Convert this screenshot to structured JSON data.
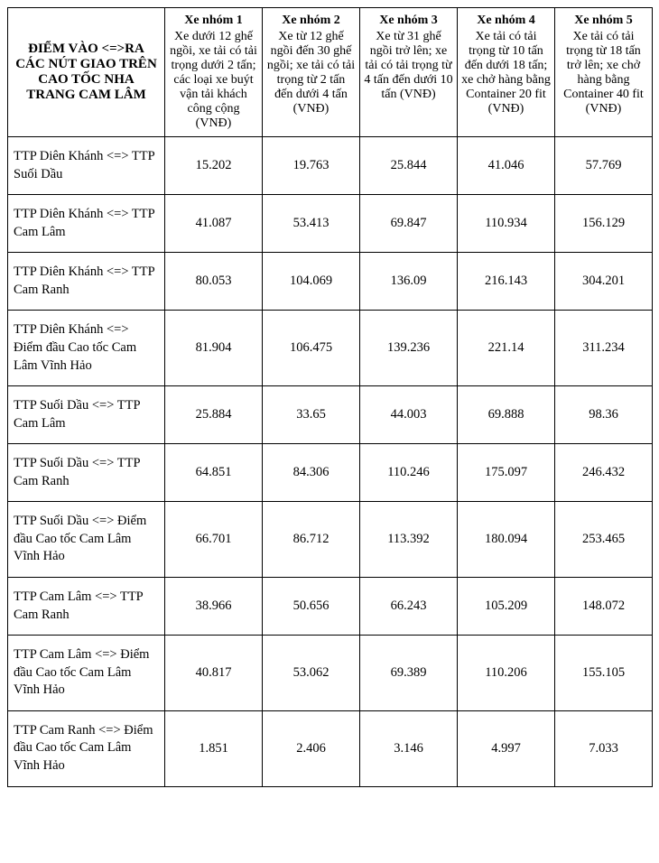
{
  "table": {
    "type": "table",
    "background_color": "#ffffff",
    "border_color": "#000000",
    "font_family": "Times New Roman",
    "header_fontsize": 15,
    "group_title_fontsize": 14,
    "cell_fontsize": 14.5,
    "header": {
      "route_title": "ĐIỂM VÀO <=>RA CÁC NÚT GIAO TRÊN CAO TỐC NHA TRANG CAM LÂM",
      "groups": [
        {
          "title": "Xe nhóm 1",
          "desc": "Xe dưới 12 ghế ngồi, xe tải có tải trọng dưới 2 tấn; các loại xe buýt vận tải khách công cộng (VNĐ)"
        },
        {
          "title": "Xe nhóm 2",
          "desc": "Xe từ 12 ghế ngồi đến 30 ghế ngồi; xe tải có tải trọng từ 2 tấn đến dưới 4 tấn (VNĐ)"
        },
        {
          "title": "Xe nhóm 3",
          "desc": "Xe từ 31 ghế ngồi trở lên; xe tải có tải trọng từ 4 tấn đến dưới 10 tấn (VNĐ)"
        },
        {
          "title": "Xe nhóm 4",
          "desc": "Xe  tải có tải trọng từ 10 tấn đến dưới 18 tấn; xe chở hàng bằng Container 20 fit (VNĐ)"
        },
        {
          "title": "Xe nhóm 5",
          "desc": "Xe tải có tải trọng từ 18 tấn trở lên; xe chở hàng bằng Container 40 fit (VNĐ)"
        }
      ]
    },
    "rows": [
      {
        "route": "TTP Diên Khánh <=> TTP Suối Dầu",
        "values": [
          "15.202",
          "19.763",
          "25.844",
          "41.046",
          "57.769"
        ]
      },
      {
        "route": "TTP Diên Khánh <=> TTP Cam Lâm",
        "values": [
          "41.087",
          "53.413",
          "69.847",
          "110.934",
          "156.129"
        ]
      },
      {
        "route": "TTP Diên Khánh <=> TTP Cam Ranh",
        "values": [
          "80.053",
          "104.069",
          "136.09",
          "216.143",
          "304.201"
        ]
      },
      {
        "route": "TTP Diên Khánh <=> Điểm đầu Cao tốc Cam Lâm Vĩnh Hảo",
        "values": [
          "81.904",
          "106.475",
          "139.236",
          "221.14",
          "311.234"
        ]
      },
      {
        "route": "TTP Suối Dầu <=> TTP Cam Lâm",
        "values": [
          "25.884",
          "33.65",
          "44.003",
          "69.888",
          "98.36"
        ]
      },
      {
        "route": "TTP Suối Dầu <=> TTP Cam Ranh",
        "values": [
          "64.851",
          "84.306",
          "110.246",
          "175.097",
          "246.432"
        ]
      },
      {
        "route": "TTP Suối Dầu <=> Điểm đầu Cao tốc Cam Lâm Vĩnh Hảo",
        "values": [
          "66.701",
          "86.712",
          "113.392",
          "180.094",
          "253.465"
        ]
      },
      {
        "route": "TTP Cam Lâm <=> TTP Cam Ranh",
        "values": [
          "38.966",
          "50.656",
          "66.243",
          "105.209",
          "148.072"
        ]
      },
      {
        "route": "TTP Cam Lâm <=> Điểm đầu Cao tốc Cam Lâm Vĩnh Hảo",
        "values": [
          "40.817",
          "53.062",
          "69.389",
          "110.206",
          "155.105"
        ]
      },
      {
        "route": "TTP Cam Ranh <=> Điểm đầu Cao tốc Cam Lâm Vĩnh Hảo",
        "values": [
          "1.851",
          "2.406",
          "3.146",
          "4.997",
          "7.033"
        ]
      }
    ]
  }
}
